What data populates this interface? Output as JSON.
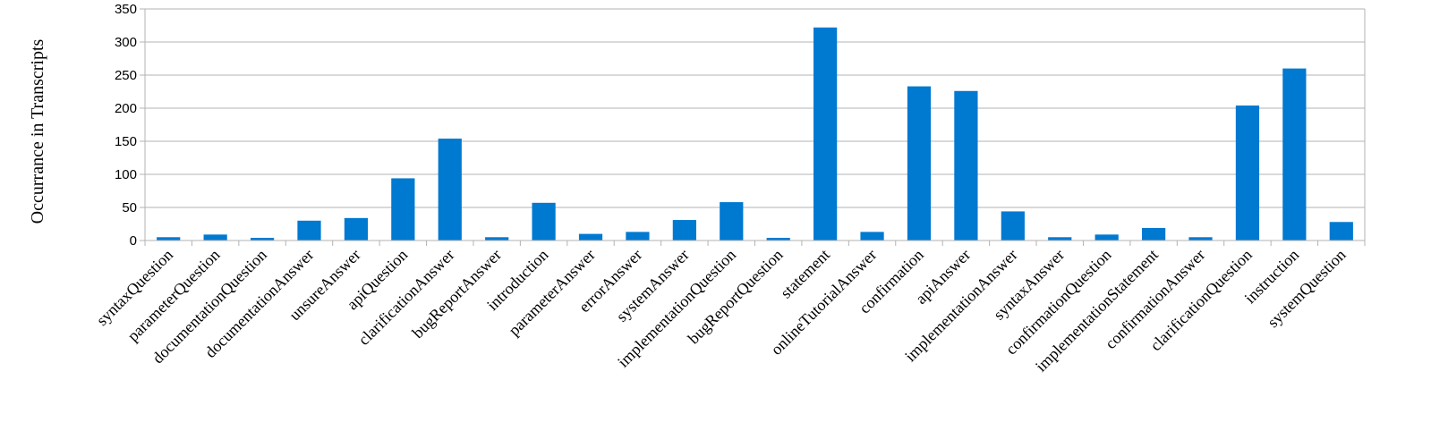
{
  "chart_data": {
    "type": "bar",
    "title": "",
    "xlabel": "",
    "ylabel": "Occurrance in Transcripts",
    "ylim": [
      0,
      350
    ],
    "yticks": [
      0,
      50,
      100,
      150,
      200,
      250,
      300,
      350
    ],
    "grid": true,
    "legend": "none",
    "bar_color": "#0079d1",
    "categories": [
      "syntaxQuestion",
      "parameterQuestion",
      "documentationQuestion",
      "documentationAnswer",
      "unsureAnswer",
      "apiQuestion",
      "clarificationAnswer",
      "bugReportAnswer",
      "introduction",
      "parameterAnswer",
      "errorAnswer",
      "systemAnswer",
      "implementationQuestion",
      "bugReportQuestion",
      "statement",
      "onlineTutorialAnswer",
      "confirmation",
      "apiAnswer",
      "implementationAnswer",
      "syntaxAnswer",
      "confirmationQuestion",
      "implementationStatement",
      "confirmationAnswer",
      "clarificationQuestion",
      "instruction",
      "systemQuestion"
    ],
    "values": [
      5,
      9,
      4,
      30,
      34,
      94,
      154,
      5,
      57,
      10,
      13,
      31,
      58,
      4,
      322,
      13,
      233,
      226,
      44,
      5,
      9,
      19,
      5,
      204,
      260,
      28
    ]
  }
}
